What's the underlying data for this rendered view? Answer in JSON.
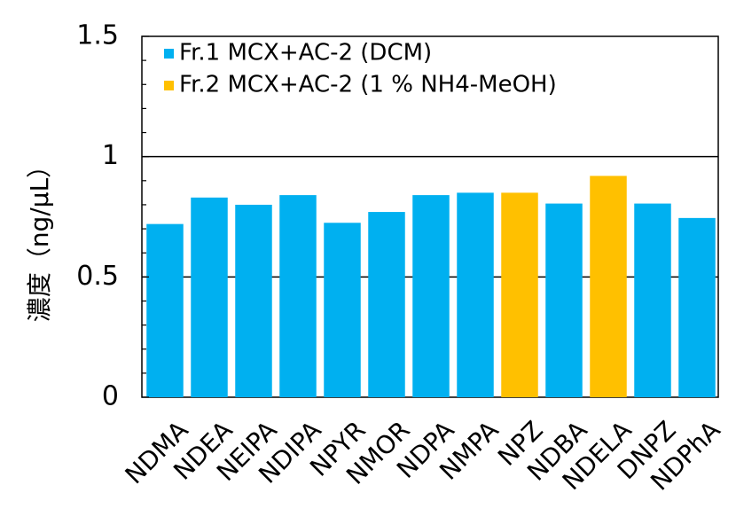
{
  "chart_data": {
    "type": "bar",
    "title": "",
    "xlabel": "",
    "ylabel": "濃度（ng/μL）",
    "ylim": [
      0,
      1.5
    ],
    "yticks": [
      0,
      0.5,
      1,
      1.5
    ],
    "ytick_labels": [
      "0",
      "0.5",
      "1",
      "1.5"
    ],
    "gridlines": [
      0.5,
      1
    ],
    "legend_position": "top-left",
    "categories": [
      "NDMA",
      "NDEA",
      "NEIPA",
      "NDIPA",
      "NPYR",
      "NMOR",
      "NDPA",
      "NMPA",
      "NPZ",
      "NDBA",
      "NDELA",
      "DNPZ",
      "NDPhA"
    ],
    "values": [
      0.72,
      0.83,
      0.8,
      0.84,
      0.725,
      0.77,
      0.84,
      0.85,
      0.85,
      0.805,
      0.92,
      0.805,
      0.745
    ],
    "bar_series": [
      0,
      0,
      0,
      0,
      0,
      0,
      0,
      0,
      1,
      0,
      1,
      0,
      0
    ],
    "series": [
      {
        "name": "Fr.1 MCX+AC-2 (DCM)",
        "color": "#00B0F0"
      },
      {
        "name": "Fr.2 MCX+AC-2 (1 % NH4-MeOH)",
        "color": "#FFC000"
      }
    ]
  }
}
